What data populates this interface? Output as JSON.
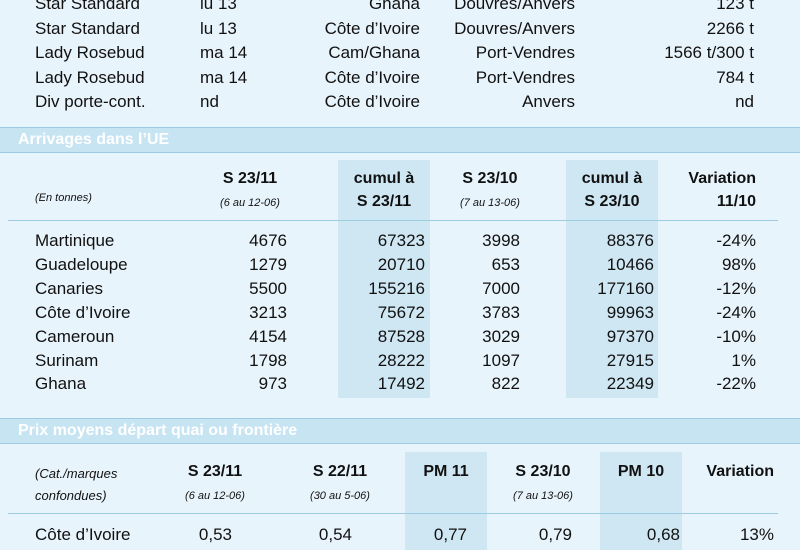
{
  "ships": [
    {
      "name": "Star Standard",
      "date": "lu 13",
      "origin": "Ghana",
      "dest": "Douvres/Anvers",
      "qty": "123 t"
    },
    {
      "name": "Star Standard",
      "date": "lu 13",
      "origin": "Côte d’Ivoire",
      "dest": "Douvres/Anvers",
      "qty": "2266 t"
    },
    {
      "name": "Lady Rosebud",
      "date": "ma 14",
      "origin": "Cam/Ghana",
      "dest": "Port-Vendres",
      "qty": "1566 t/300 t"
    },
    {
      "name": "Lady Rosebud",
      "date": "ma 14",
      "origin": "Côte d’Ivoire",
      "dest": "Port-Vendres",
      "qty": "784 t"
    },
    {
      "name": "Div porte-cont.",
      "date": "nd",
      "origin": "Côte d’Ivoire",
      "dest": "Anvers",
      "qty": "nd"
    }
  ],
  "arrivages": {
    "title": "Arrivages dans l’UE",
    "unit_note": "(En tonnes)",
    "headers": {
      "s2311": "S 23/11",
      "s2311_sub": "(6 au 12-06)",
      "cumul1_l1": "cumul à",
      "cumul1_l2": "S 23/11",
      "s2310": "S 23/10",
      "s2310_sub": "(7 au 13-06)",
      "cumul2_l1": "cumul à",
      "cumul2_l2": "S 23/10",
      "var_l1": "Variation",
      "var_l2": "11/10"
    },
    "rows": [
      [
        "Martinique",
        "4676",
        "67323",
        "3998",
        "88376",
        "-24%"
      ],
      [
        "Guadeloupe",
        "1279",
        "20710",
        "653",
        "10466",
        "98%"
      ],
      [
        "Canaries",
        "5500",
        "155216",
        "7000",
        "177160",
        "-12%"
      ],
      [
        "Côte d’Ivoire",
        "3213",
        "75672",
        "3783",
        "99963",
        "-24%"
      ],
      [
        "Cameroun",
        "4154",
        "87528",
        "3029",
        "97370",
        "-10%"
      ],
      [
        "Surinam",
        "1798",
        "28222",
        "1097",
        "27915",
        "1%"
      ],
      [
        "Ghana",
        "973",
        "17492",
        "822",
        "22349",
        "-22%"
      ]
    ]
  },
  "prix": {
    "title": "Prix moyens départ quai ou frontière",
    "note_l1": "(Cat./marques",
    "note_l2": "confondues)",
    "headers": {
      "s2311": "S 23/11",
      "s2311_sub": "(6 au 12-06)",
      "s2211": "S 22/11",
      "s2211_sub": "(30 au 5-06)",
      "pm11": "PM 11",
      "s2310": "S 23/10",
      "s2310_sub": "(7 au 13-06)",
      "pm10": "PM 10",
      "var": "Variation"
    },
    "rows": [
      [
        "Côte d’Ivoire",
        "0,53",
        "0,54",
        "0,77",
        "0,79",
        "0,68",
        "13%"
      ]
    ]
  }
}
